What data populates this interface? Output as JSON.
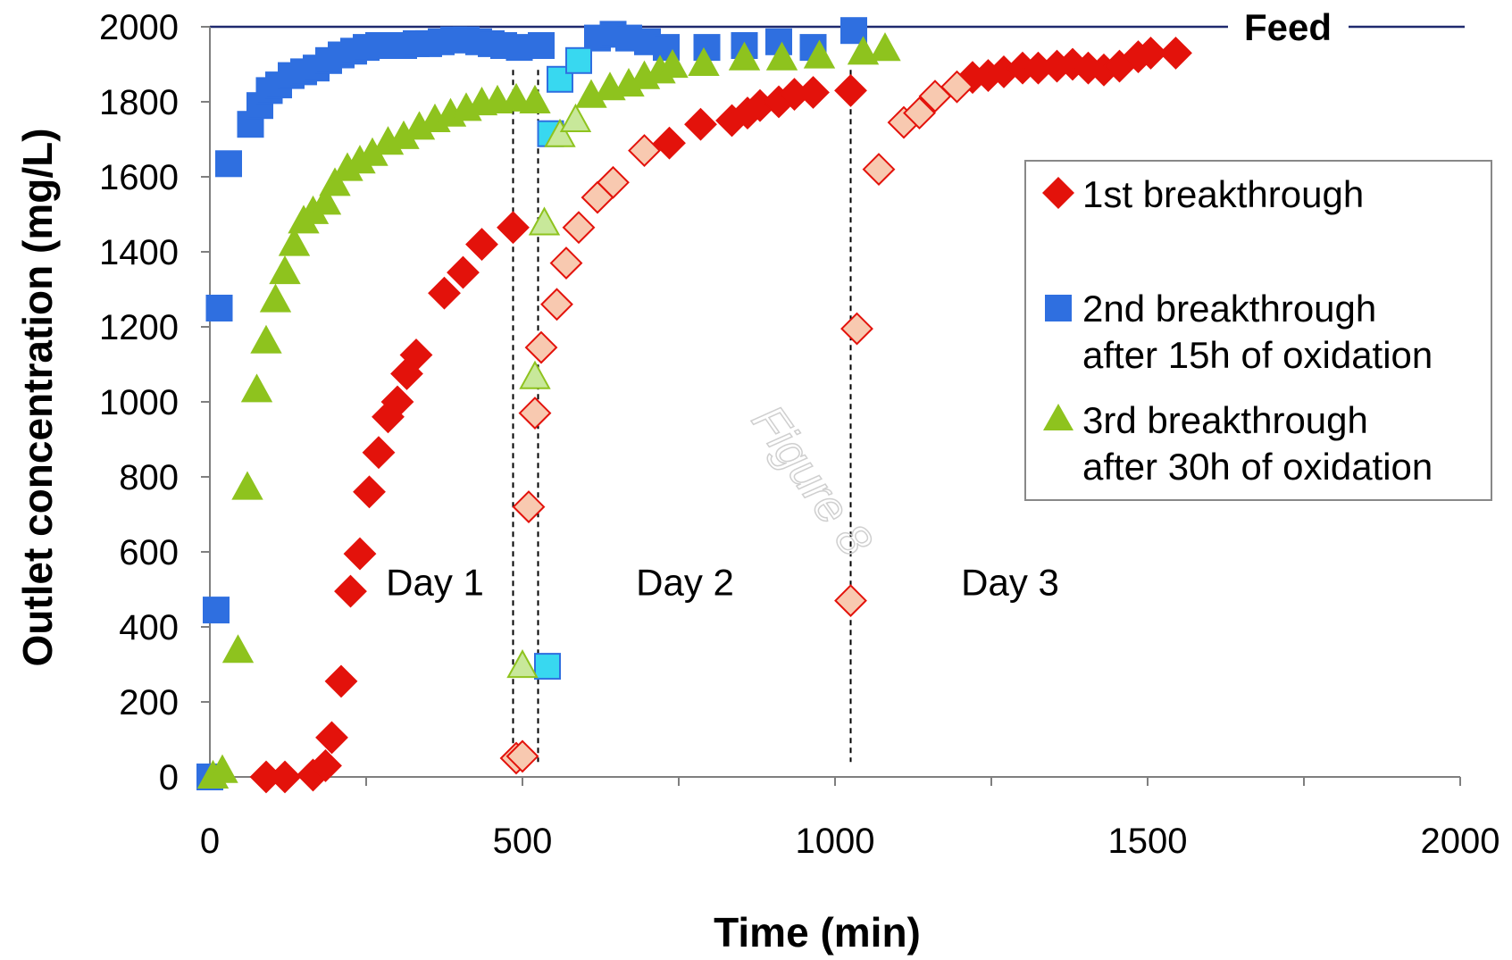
{
  "chart_data": {
    "type": "scatter",
    "xlabel": "Time (min)",
    "ylabel": "Outlet concentration (mg/L)",
    "xlim": [
      0,
      2000
    ],
    "ylim": [
      0,
      2000
    ],
    "xticks": [
      "0",
      "500",
      "1000",
      "1500",
      "2000"
    ],
    "yticks": [
      "0",
      "200",
      "400",
      "600",
      "800",
      "1000",
      "1200",
      "1400",
      "1600",
      "1800",
      "2000"
    ],
    "grid": false,
    "legend_position": "right",
    "feed": {
      "label": "Feed",
      "value": 2000
    },
    "day_separators": [
      485,
      525,
      1025
    ],
    "day_labels": [
      {
        "text": "Day 1",
        "x": 360,
        "y": 520
      },
      {
        "text": "Day 2",
        "x": 760,
        "y": 520
      },
      {
        "text": "Day 3",
        "x": 1280,
        "y": 520
      }
    ],
    "watermark": "Figure 8",
    "series": [
      {
        "name": "1st breakthrough",
        "marker": "diamond",
        "color": "#e3120b",
        "points": [
          [
            90,
            0
          ],
          [
            120,
            0
          ],
          [
            165,
            5
          ],
          [
            185,
            30
          ],
          [
            195,
            105
          ],
          [
            210,
            255
          ],
          [
            225,
            495
          ],
          [
            240,
            595
          ],
          [
            255,
            760
          ],
          [
            270,
            865
          ],
          [
            285,
            960
          ],
          [
            300,
            1000
          ],
          [
            315,
            1075
          ],
          [
            330,
            1125
          ],
          [
            375,
            1290
          ],
          [
            405,
            1345
          ],
          [
            435,
            1420
          ],
          [
            485,
            1465
          ],
          [
            735,
            1690
          ],
          [
            785,
            1740
          ],
          [
            835,
            1750
          ],
          [
            860,
            1770
          ],
          [
            880,
            1790
          ],
          [
            910,
            1800
          ],
          [
            935,
            1820
          ],
          [
            965,
            1825
          ],
          [
            1025,
            1830
          ],
          [
            1220,
            1865
          ],
          [
            1245,
            1870
          ],
          [
            1270,
            1880
          ],
          [
            1300,
            1890
          ],
          [
            1325,
            1890
          ],
          [
            1355,
            1895
          ],
          [
            1380,
            1900
          ],
          [
            1405,
            1890
          ],
          [
            1430,
            1885
          ],
          [
            1455,
            1895
          ],
          [
            1485,
            1920
          ],
          [
            1505,
            1930
          ],
          [
            1545,
            1930
          ]
        ],
        "open_points": [
          [
            490,
            50
          ],
          [
            500,
            55
          ],
          [
            510,
            720
          ],
          [
            520,
            970
          ],
          [
            530,
            1145
          ],
          [
            555,
            1260
          ],
          [
            570,
            1370
          ],
          [
            590,
            1465
          ],
          [
            620,
            1545
          ],
          [
            645,
            1585
          ],
          [
            695,
            1670
          ],
          [
            1025,
            470
          ],
          [
            1035,
            1195
          ],
          [
            1070,
            1620
          ],
          [
            1110,
            1745
          ],
          [
            1135,
            1770
          ],
          [
            1160,
            1815
          ],
          [
            1195,
            1840
          ]
        ],
        "open_color": "#f8c9b0"
      },
      {
        "name": "2nd breakthrough after 15h of oxidation",
        "marker": "square",
        "color": "#2f6fe0",
        "points": [
          [
            0,
            0
          ],
          [
            10,
            445
          ],
          [
            15,
            1250
          ],
          [
            30,
            1635
          ],
          [
            65,
            1740
          ],
          [
            80,
            1790
          ],
          [
            95,
            1830
          ],
          [
            110,
            1845
          ],
          [
            130,
            1870
          ],
          [
            150,
            1880
          ],
          [
            170,
            1890
          ],
          [
            190,
            1910
          ],
          [
            210,
            1925
          ],
          [
            230,
            1935
          ],
          [
            250,
            1945
          ],
          [
            270,
            1950
          ],
          [
            290,
            1950
          ],
          [
            310,
            1950
          ],
          [
            330,
            1955
          ],
          [
            350,
            1955
          ],
          [
            370,
            1960
          ],
          [
            390,
            1965
          ],
          [
            410,
            1965
          ],
          [
            430,
            1960
          ],
          [
            450,
            1955
          ],
          [
            470,
            1950
          ],
          [
            495,
            1945
          ],
          [
            530,
            1950
          ],
          [
            620,
            1970
          ],
          [
            645,
            1980
          ],
          [
            670,
            1970
          ],
          [
            700,
            1960
          ],
          [
            730,
            1945
          ],
          [
            795,
            1945
          ],
          [
            855,
            1950
          ],
          [
            910,
            1960
          ],
          [
            965,
            1945
          ],
          [
            1030,
            1990
          ]
        ],
        "open_points": [
          [
            540,
            295
          ],
          [
            545,
            1715
          ],
          [
            560,
            1860
          ],
          [
            590,
            1910
          ]
        ],
        "open_color": "#38d8f0"
      },
      {
        "name": "3rd breakthrough after 30h of oxidation",
        "marker": "triangle",
        "color": "#8ec31e",
        "points": [
          [
            5,
            0
          ],
          [
            20,
            15
          ],
          [
            45,
            335
          ],
          [
            60,
            770
          ],
          [
            75,
            1030
          ],
          [
            90,
            1160
          ],
          [
            105,
            1270
          ],
          [
            120,
            1345
          ],
          [
            135,
            1420
          ],
          [
            150,
            1480
          ],
          [
            165,
            1505
          ],
          [
            185,
            1530
          ],
          [
            200,
            1580
          ],
          [
            220,
            1620
          ],
          [
            240,
            1640
          ],
          [
            260,
            1660
          ],
          [
            285,
            1690
          ],
          [
            310,
            1705
          ],
          [
            335,
            1730
          ],
          [
            360,
            1750
          ],
          [
            385,
            1765
          ],
          [
            410,
            1780
          ],
          [
            435,
            1795
          ],
          [
            460,
            1800
          ],
          [
            490,
            1805
          ],
          [
            520,
            1800
          ],
          [
            610,
            1815
          ],
          [
            640,
            1835
          ],
          [
            670,
            1845
          ],
          [
            695,
            1865
          ],
          [
            720,
            1880
          ],
          [
            740,
            1895
          ],
          [
            790,
            1900
          ],
          [
            855,
            1915
          ],
          [
            915,
            1915
          ],
          [
            975,
            1920
          ],
          [
            1045,
            1930
          ],
          [
            1080,
            1940
          ]
        ],
        "open_points": [
          [
            500,
            295
          ],
          [
            520,
            1065
          ],
          [
            535,
            1475
          ],
          [
            560,
            1710
          ],
          [
            585,
            1750
          ]
        ],
        "open_color": "#c8e89a"
      }
    ]
  }
}
